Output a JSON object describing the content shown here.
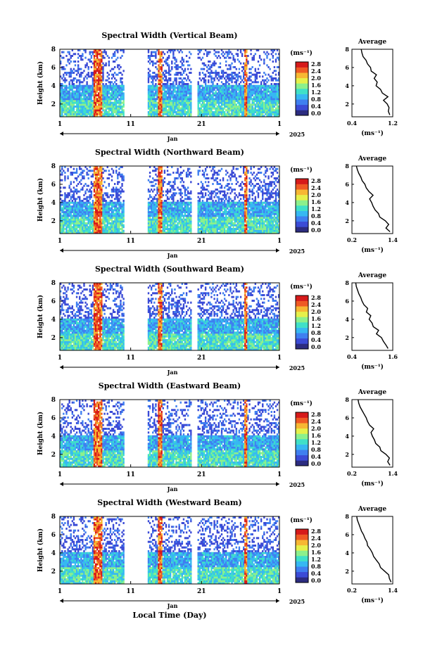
{
  "figure": {
    "x_label": "Local Time (Day)",
    "month_label": "Jan",
    "year_label": "2025",
    "height_axis_label": "Height (km)",
    "height_ticks": [
      "2",
      "4",
      "6",
      "8"
    ],
    "time_ticks": [
      "1",
      "11",
      "21",
      "1"
    ],
    "colorbar_unit": "(ms⁻¹)",
    "colorbar_ticks": [
      "0.0",
      "0.4",
      "0.8",
      "1.2",
      "1.6",
      "2.0",
      "2.4",
      "2.8"
    ],
    "colorbar_colors": [
      "#2c2c80",
      "#3b4bd6",
      "#3f7ff0",
      "#36b8f2",
      "#3fe0c8",
      "#8cf08c",
      "#e6f04a",
      "#f7b733",
      "#ef5a24",
      "#d61a1a"
    ],
    "average_title": "Average",
    "average_unit": "(ms⁻¹)"
  },
  "chart_data": [
    {
      "type": "heatmap",
      "title": "Spectral Width (Vertical Beam)",
      "xlabel": "",
      "ylabel": "Height (km)",
      "xlim": [
        1,
        32
      ],
      "ylim": [
        0.6,
        8
      ],
      "colorbar_range": [
        0.0,
        2.8
      ],
      "data_gaps_days": [
        [
          10.0,
          13.5
        ],
        [
          19.5,
          20.5
        ]
      ],
      "profile": {
        "title": "Average",
        "xlabel": "(ms⁻¹)",
        "xticks": [
          "0.4",
          "1.2"
        ],
        "xlim": [
          0.2,
          1.3
        ],
        "height": [
          0.8,
          1.2,
          1.6,
          2.0,
          2.4,
          2.8,
          3.2,
          3.6,
          4.0,
          4.4,
          4.8,
          5.2,
          5.6,
          6.0,
          6.4,
          6.8,
          7.2,
          7.6,
          8.0
        ],
        "width": [
          1.22,
          1.18,
          1.2,
          1.15,
          1.05,
          1.17,
          1.02,
          0.97,
          0.85,
          0.88,
          0.8,
          0.86,
          0.72,
          0.7,
          0.62,
          0.58,
          0.5,
          0.47,
          0.45
        ]
      }
    },
    {
      "type": "heatmap",
      "title": "Spectral Width (Northward Beam)",
      "xlabel": "",
      "ylabel": "Height (km)",
      "xlim": [
        1,
        32
      ],
      "ylim": [
        0.6,
        8
      ],
      "colorbar_range": [
        0.0,
        2.8
      ],
      "data_gaps_days": [
        [
          10.0,
          13.5
        ],
        [
          19.5,
          20.5
        ]
      ],
      "profile": {
        "title": "Average",
        "xlabel": "(ms⁻¹)",
        "xticks": [
          "0.2",
          "1.4"
        ],
        "xlim": [
          0.2,
          1.4
        ],
        "height": [
          0.8,
          1.2,
          1.6,
          2.0,
          2.4,
          2.8,
          3.2,
          3.6,
          4.0,
          4.4,
          4.8,
          5.2,
          5.6,
          6.0,
          6.4,
          6.8,
          7.2,
          7.6,
          8.0
        ],
        "width": [
          1.32,
          1.2,
          1.28,
          1.18,
          1.02,
          0.98,
          0.88,
          0.82,
          0.78,
          0.72,
          0.82,
          0.7,
          0.62,
          0.58,
          0.5,
          0.46,
          0.4,
          0.36,
          0.33
        ]
      }
    },
    {
      "type": "heatmap",
      "title": "Spectral Width (Southward Beam)",
      "xlabel": "",
      "ylabel": "Height (km)",
      "xlim": [
        1,
        32
      ],
      "ylim": [
        0.6,
        8
      ],
      "colorbar_range": [
        0.0,
        2.8
      ],
      "data_gaps_days": [
        [
          10.0,
          13.5
        ],
        [
          19.5,
          20.5
        ]
      ],
      "profile": {
        "title": "Average",
        "xlabel": "(ms⁻¹)",
        "xticks": [
          "0.4",
          "1.6"
        ],
        "xlim": [
          0.3,
          1.6
        ],
        "height": [
          0.8,
          1.2,
          1.6,
          2.0,
          2.4,
          2.8,
          3.2,
          3.6,
          4.0,
          4.4,
          4.8,
          5.2,
          5.6,
          6.0,
          6.4,
          6.8,
          7.2,
          7.6,
          8.0
        ],
        "width": [
          1.45,
          1.38,
          1.3,
          1.24,
          1.08,
          1.15,
          0.98,
          0.94,
          0.85,
          0.9,
          0.76,
          0.8,
          0.68,
          0.62,
          0.58,
          0.52,
          0.48,
          0.44,
          0.42
        ]
      }
    },
    {
      "type": "heatmap",
      "title": "Spectral Width (Eastward Beam)",
      "xlabel": "",
      "ylabel": "Height (km)",
      "xlim": [
        1,
        32
      ],
      "ylim": [
        0.6,
        8
      ],
      "colorbar_range": [
        0.0,
        2.8
      ],
      "data_gaps_days": [
        [
          10.0,
          13.5
        ],
        [
          19.5,
          20.5
        ]
      ],
      "profile": {
        "title": "Average",
        "xlabel": "(ms⁻¹)",
        "xticks": [
          "0.2",
          "1.4"
        ],
        "xlim": [
          0.2,
          1.4
        ],
        "height": [
          0.8,
          1.2,
          1.6,
          2.0,
          2.4,
          2.8,
          3.2,
          3.6,
          4.0,
          4.4,
          4.8,
          5.2,
          5.6,
          6.0,
          6.4,
          6.8,
          7.2,
          7.6,
          8.0
        ],
        "width": [
          1.32,
          1.25,
          1.3,
          1.2,
          1.05,
          1.02,
          0.9,
          0.86,
          0.8,
          0.76,
          0.84,
          0.72,
          0.66,
          0.62,
          0.56,
          0.5,
          0.44,
          0.4,
          0.38
        ]
      }
    },
    {
      "type": "heatmap",
      "title": "Spectral Width (Westward Beam)",
      "xlabel": "Local Time (Day)",
      "ylabel": "Height (km)",
      "xlim": [
        1,
        32
      ],
      "ylim": [
        0.6,
        8
      ],
      "colorbar_range": [
        0.0,
        2.8
      ],
      "data_gaps_days": [
        [
          10.0,
          13.5
        ],
        [
          19.5,
          20.5
        ]
      ],
      "profile": {
        "title": "Average",
        "xlabel": "(ms⁻¹)",
        "xticks": [
          "0.2",
          "1.4"
        ],
        "xlim": [
          0.2,
          1.4
        ],
        "height": [
          0.8,
          1.2,
          1.6,
          2.0,
          2.4,
          2.8,
          3.2,
          3.6,
          4.0,
          4.4,
          4.8,
          5.2,
          5.6,
          6.0,
          6.4,
          6.8,
          7.2,
          7.6,
          8.0
        ],
        "width": [
          1.35,
          1.3,
          1.28,
          1.16,
          1.04,
          1.0,
          0.92,
          0.84,
          0.8,
          0.74,
          0.66,
          0.64,
          0.58,
          0.54,
          0.48,
          0.44,
          0.4,
          0.36,
          0.34
        ]
      }
    }
  ]
}
